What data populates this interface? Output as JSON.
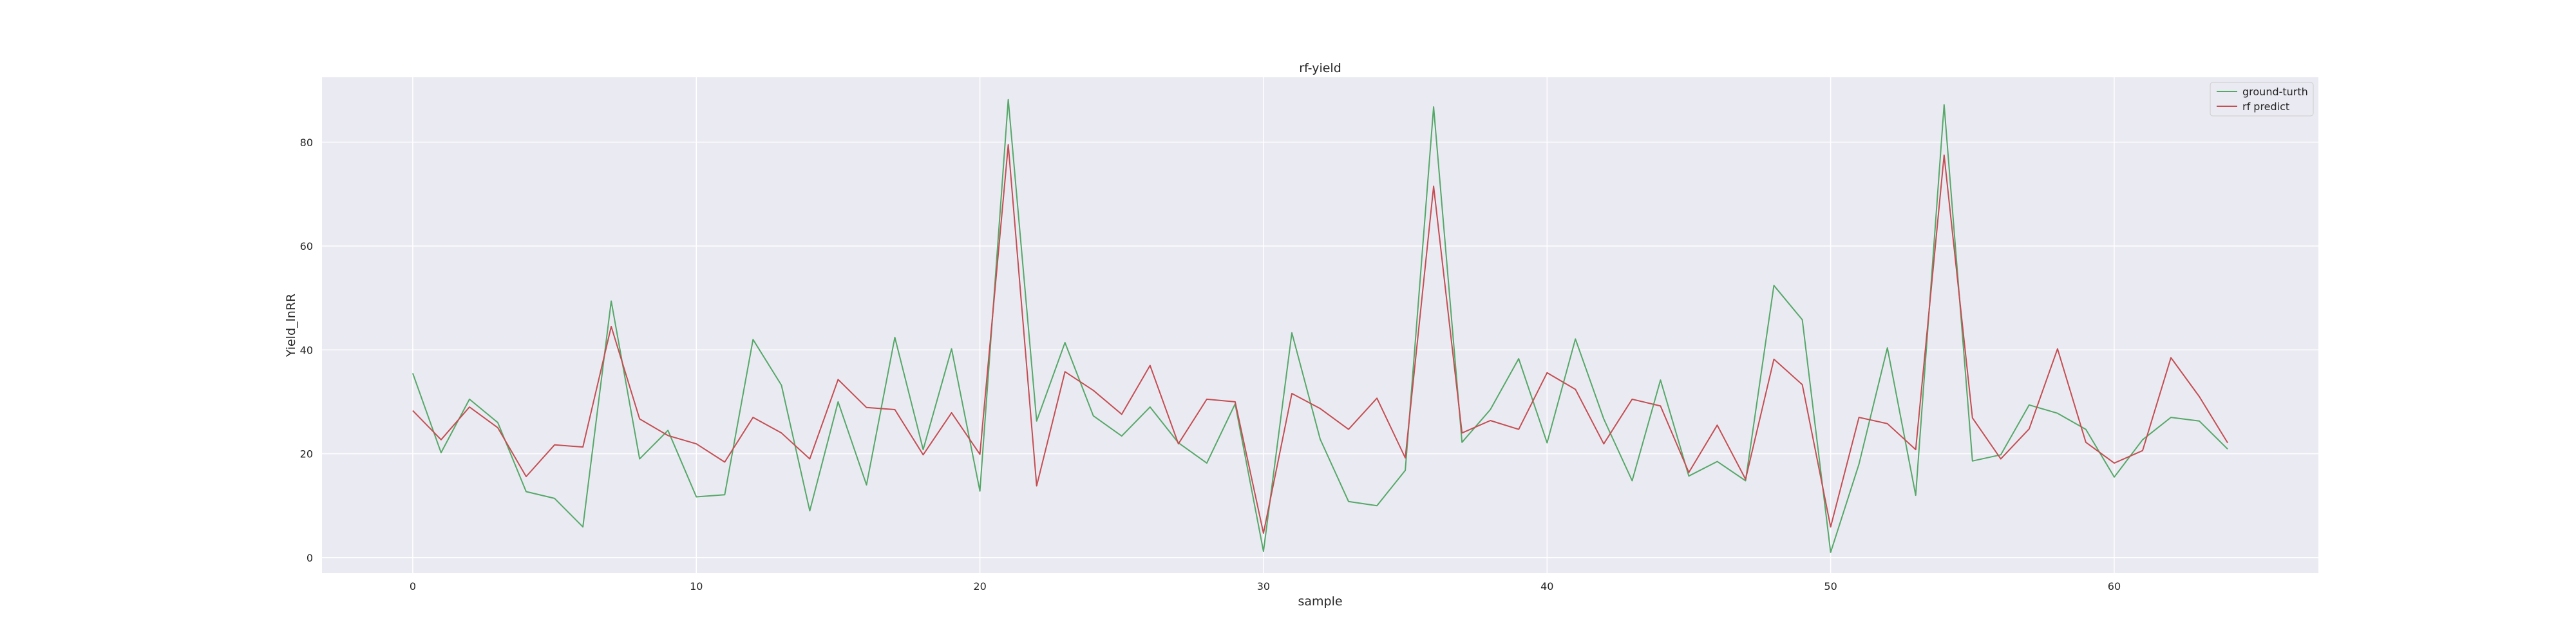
{
  "chart_data": {
    "type": "line",
    "title": "rf-yield",
    "xlabel": "sample",
    "ylabel": "Yield_lnRR",
    "xlim": [
      -3.2,
      67.2
    ],
    "ylim": [
      -3.0,
      92.5
    ],
    "xticks": [
      0,
      10,
      20,
      30,
      40,
      50,
      60
    ],
    "yticks": [
      0,
      20,
      40,
      60,
      80
    ],
    "grid": true,
    "legend_position": "top-right",
    "background_color": "#eaeaf2",
    "grid_color": "#ffffff",
    "x": [
      0,
      1,
      2,
      3,
      4,
      5,
      6,
      7,
      8,
      9,
      10,
      11,
      12,
      13,
      14,
      15,
      16,
      17,
      18,
      19,
      20,
      21,
      22,
      23,
      24,
      25,
      26,
      27,
      28,
      29,
      30,
      31,
      32,
      33,
      34,
      35,
      36,
      37,
      38,
      39,
      40,
      41,
      42,
      43,
      44,
      45,
      46,
      47,
      48,
      49,
      50,
      51,
      52,
      53,
      54,
      55,
      56,
      57,
      58,
      59,
      60,
      61,
      62,
      63,
      64
    ],
    "series": [
      {
        "name": "ground-turth",
        "color": "#55a868",
        "values": [
          35.5,
          20.2,
          30.5,
          26,
          12.7,
          11.4,
          5.9,
          49.4,
          19,
          24.5,
          11.7,
          12.1,
          42,
          33.2,
          9,
          30,
          14,
          42.4,
          20.8,
          40.2,
          12.8,
          88.2,
          26.3,
          41.4,
          27.3,
          23.4,
          29,
          22.1,
          18.2,
          29.6,
          1.2,
          43.3,
          22.8,
          10.8,
          10,
          16.8,
          86.8,
          22.2,
          28.5,
          38.3,
          22.1,
          42.1,
          26.7,
          14.8,
          34.2,
          15.7,
          18.5,
          14.8,
          52.4,
          45.8,
          1,
          18,
          40.4,
          12,
          87.2,
          18.6,
          19.8,
          29.4,
          27.8,
          24.7,
          15.5,
          22.7,
          27,
          26.3,
          20.9
        ]
      },
      {
        "name": "rf predict",
        "color": "#c44e52",
        "values": [
          28.3,
          22.7,
          29,
          25,
          15.6,
          21.7,
          21.3,
          44.5,
          26.7,
          23.5,
          21.9,
          18.4,
          27,
          24,
          19,
          34.3,
          28.9,
          28.5,
          19.8,
          27.9,
          19.9,
          79.5,
          13.8,
          35.8,
          32.2,
          27.6,
          37,
          21.9,
          30.5,
          30,
          4.7,
          31.6,
          28.7,
          24.7,
          30.7,
          19.2,
          71.5,
          24,
          26.4,
          24.7,
          35.6,
          32.4,
          21.9,
          30.5,
          29.2,
          16.4,
          25.5,
          15.1,
          38.2,
          33.3,
          5.9,
          27,
          25.8,
          20.8,
          77.5,
          26.9,
          19,
          24.8,
          40.2,
          22.2,
          18.2,
          20.6,
          38.5,
          31,
          22.1
        ]
      }
    ]
  }
}
